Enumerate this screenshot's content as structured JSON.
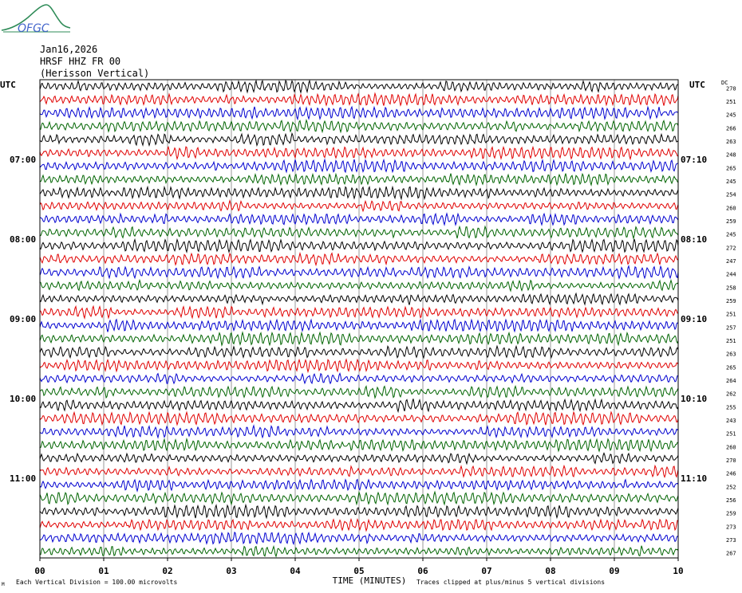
{
  "logo": {
    "text": "OFGC"
  },
  "header": {
    "date": "Jan16,2026",
    "station": "HRSF HHZ FR 00",
    "location": "(Herisson Vertical)"
  },
  "footer": {
    "scale_note": "Each Vertical Division =  100.00 microvolts",
    "clip_note": "Traces clipped at plus/minus 5 vertical divisions",
    "corner_mark": "M"
  },
  "chart_data": {
    "type": "line",
    "title": "",
    "xlabel": "TIME (MINUTES)",
    "xticks": [
      "00",
      "01",
      "02",
      "03",
      "04",
      "05",
      "06",
      "07",
      "08",
      "09",
      "10"
    ],
    "xlim": [
      0,
      10
    ],
    "left_axis_label": "UTC",
    "right_axis_label": "UTC",
    "dc_header": "DC",
    "left_hour_labels": [
      {
        "row": 6,
        "label": "07:00"
      },
      {
        "row": 12,
        "label": "08:00"
      },
      {
        "row": 18,
        "label": "09:00"
      },
      {
        "row": 24,
        "label": "10:00"
      },
      {
        "row": 30,
        "label": "11:00"
      }
    ],
    "right_hour_labels": [
      {
        "row": 6,
        "label": "07:10"
      },
      {
        "row": 12,
        "label": "08:10"
      },
      {
        "row": 18,
        "label": "09:10"
      },
      {
        "row": 24,
        "label": "10:10"
      },
      {
        "row": 30,
        "label": "11:10"
      }
    ],
    "trace_colors": [
      "#000000",
      "#e00000",
      "#0000d0",
      "#006400"
    ],
    "dc_offsets": [
      270,
      251,
      245,
      266,
      263,
      248,
      265,
      245,
      254,
      260,
      259,
      245,
      272,
      247,
      244,
      258,
      259,
      251,
      257,
      251,
      263,
      265,
      264,
      262,
      255,
      243,
      251,
      260,
      270,
      246,
      252,
      256,
      259,
      273,
      273,
      267
    ],
    "grid": true,
    "grid_color": "#808080"
  }
}
